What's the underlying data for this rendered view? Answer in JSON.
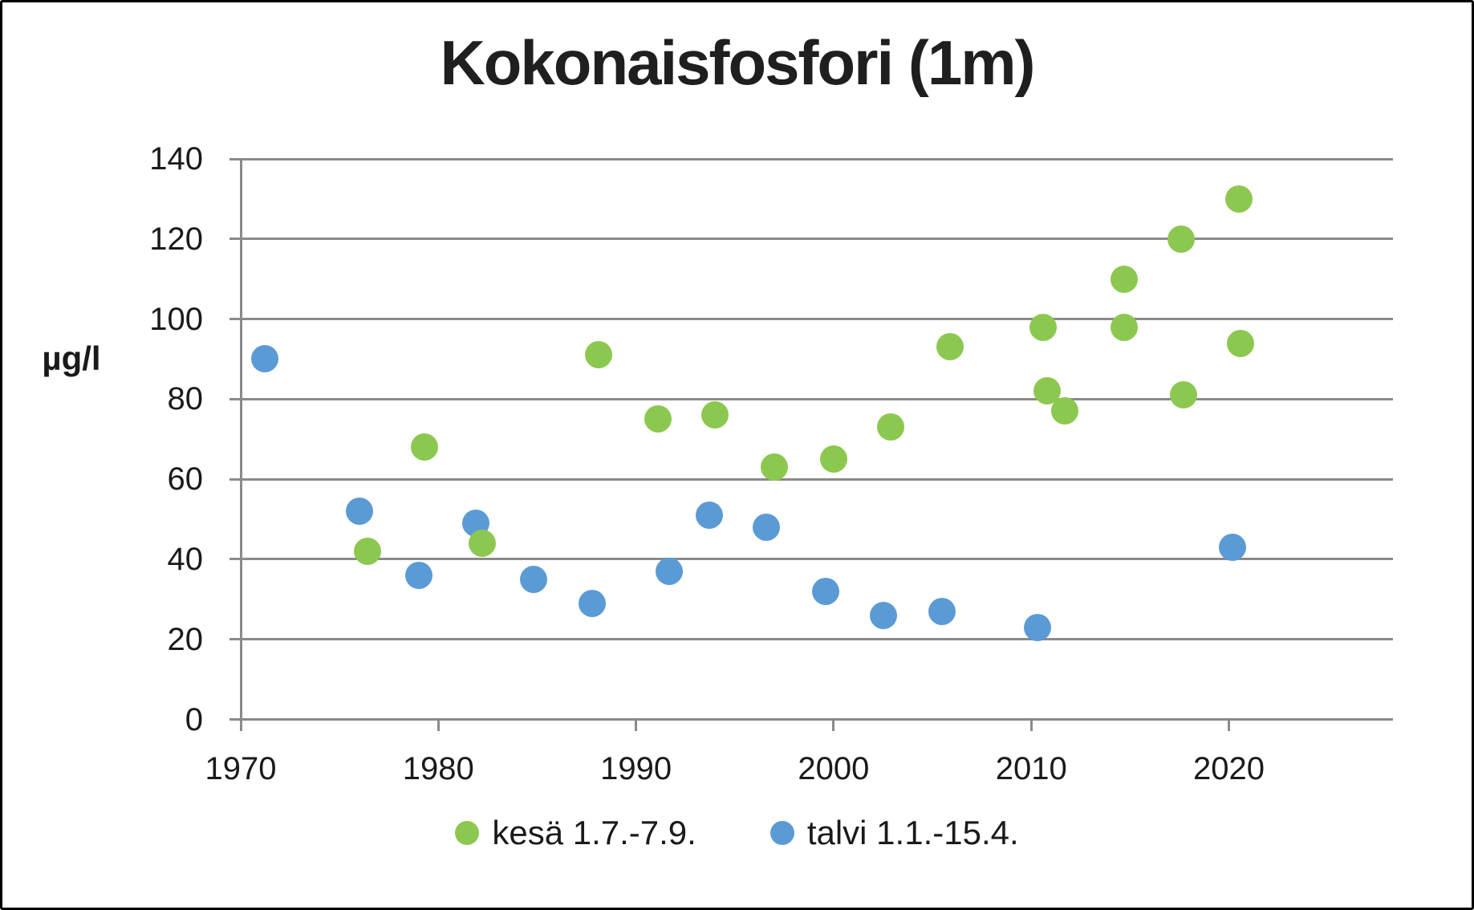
{
  "colors": {
    "gridline": "#8A8A8A",
    "text": "#1A1A1A",
    "border": "#000000",
    "kesa_green": "#8CC850",
    "talvi_blue": "#5B9BD5"
  },
  "chart_data": {
    "type": "scatter",
    "title": "Kokonaisfosfori (1m)",
    "xlabel": "",
    "ylabel": "µg/l",
    "xlim": [
      1970,
      2028.3
    ],
    "ylim": [
      0,
      140
    ],
    "x_ticks": [
      1970,
      1980,
      1990,
      2000,
      2010,
      2020
    ],
    "y_ticks": [
      0,
      20,
      40,
      60,
      80,
      100,
      120,
      140
    ],
    "grid": true,
    "legend_position": "bottom",
    "series": [
      {
        "name": "kesä 1.7.-7.9.",
        "color": "#8CC850",
        "points": [
          {
            "x": 1976.4,
            "y": 42
          },
          {
            "x": 1979.3,
            "y": 68
          },
          {
            "x": 1982.2,
            "y": 44
          },
          {
            "x": 1988.1,
            "y": 91
          },
          {
            "x": 1991.1,
            "y": 75
          },
          {
            "x": 1994.0,
            "y": 76
          },
          {
            "x": 1997.0,
            "y": 63
          },
          {
            "x": 2000.0,
            "y": 65
          },
          {
            "x": 2002.9,
            "y": 73
          },
          {
            "x": 2005.9,
            "y": 93
          },
          {
            "x": 2010.6,
            "y": 98
          },
          {
            "x": 2010.8,
            "y": 82
          },
          {
            "x": 2011.7,
            "y": 77
          },
          {
            "x": 2014.7,
            "y": 110
          },
          {
            "x": 2014.7,
            "y": 98
          },
          {
            "x": 2017.6,
            "y": 120
          },
          {
            "x": 2017.7,
            "y": 81
          },
          {
            "x": 2020.5,
            "y": 130
          },
          {
            "x": 2020.6,
            "y": 94
          }
        ]
      },
      {
        "name": "talvi 1.1.-15.4.",
        "color": "#5B9BD5",
        "points": [
          {
            "x": 1971.2,
            "y": 90
          },
          {
            "x": 1976.0,
            "y": 52
          },
          {
            "x": 1979.0,
            "y": 36
          },
          {
            "x": 1981.9,
            "y": 49
          },
          {
            "x": 1984.8,
            "y": 35
          },
          {
            "x": 1987.8,
            "y": 29
          },
          {
            "x": 1991.7,
            "y": 37
          },
          {
            "x": 1993.7,
            "y": 51
          },
          {
            "x": 1996.6,
            "y": 48
          },
          {
            "x": 1999.6,
            "y": 32
          },
          {
            "x": 2002.5,
            "y": 26
          },
          {
            "x": 2005.5,
            "y": 27
          },
          {
            "x": 2010.3,
            "y": 23
          },
          {
            "x": 2020.2,
            "y": 43
          }
        ]
      }
    ]
  }
}
